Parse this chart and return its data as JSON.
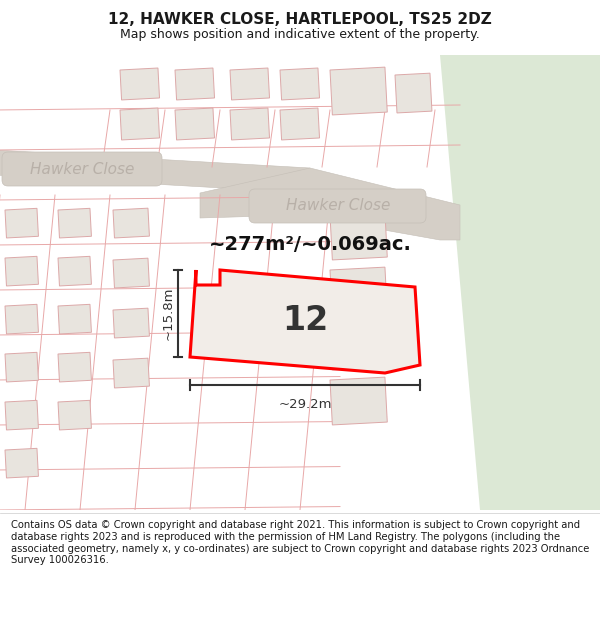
{
  "title": "12, HAWKER CLOSE, HARTLEPOOL, TS25 2DZ",
  "subtitle": "Map shows position and indicative extent of the property.",
  "footer": "Contains OS data © Crown copyright and database right 2021. This information is subject to Crown copyright and database rights 2023 and is reproduced with the permission of HM Land Registry. The polygons (including the associated geometry, namely x, y co-ordinates) are subject to Crown copyright and database rights 2023 Ordnance Survey 100026316.",
  "area_text": "~277m²/~0.069ac.",
  "dim_width": "~29.2m",
  "dim_height": "~15.8m",
  "number_label": "12",
  "road_label": "Hawker Close",
  "title_fontsize": 11,
  "subtitle_fontsize": 9,
  "footer_fontsize": 7.2,
  "map_bg": "#eeeae4",
  "green_bg": "#dce8d5",
  "road_fill": "#d5cfc7",
  "road_edge": "#c5bfb7",
  "grid_line_color": "#e8a8a8",
  "block_fill": "#e8e4de",
  "block_edge": "#dca8a8",
  "prop_fill": "#f2ede8",
  "prop_stroke": "#ff0000",
  "road_text_color": "#b8b0a8",
  "dim_color": "#333333",
  "area_color": "#111111",
  "num_color": "#333333"
}
